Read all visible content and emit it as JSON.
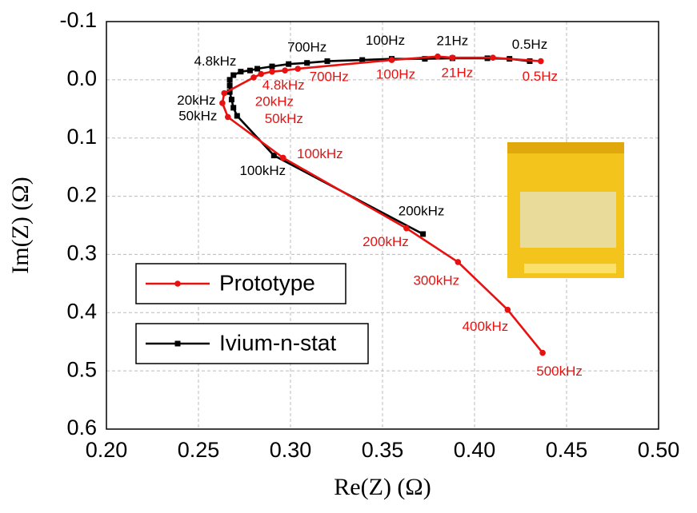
{
  "chart_data": {
    "type": "line",
    "x_label": "Re(Z) (Ω)",
    "y_label": "Im(Z) (Ω)",
    "xlim": [
      0.2,
      0.5
    ],
    "xticks": [
      {
        "value": 0.2,
        "label": "0.20"
      },
      0.25,
      {
        "value": 0.3,
        "label": "0.30"
      },
      0.35,
      {
        "value": 0.4,
        "label": "0.40"
      },
      0.45,
      {
        "value": 0.5,
        "label": "0.50"
      }
    ],
    "ylim": [
      -0.1,
      0.6
    ],
    "y_inverted": true,
    "yticks": [
      -0.1,
      {
        "value": 0,
        "label": "0.0"
      },
      0.1,
      0.2,
      0.3,
      0.4,
      0.5,
      0.6
    ],
    "grid": true,
    "series": [
      {
        "name": "Prototype",
        "color": "#e8110f",
        "marker": "circle",
        "x": [
          0.436,
          0.41,
          0.388,
          0.38,
          0.355,
          0.304,
          0.297,
          0.29,
          0.284,
          0.28,
          0.264,
          0.263,
          0.266,
          0.296,
          0.363,
          0.391,
          0.418,
          0.437
        ],
        "values": [
          -0.032,
          -0.038,
          -0.038,
          -0.04,
          -0.034,
          -0.019,
          -0.016,
          -0.014,
          -0.01,
          -0.004,
          0.023,
          0.04,
          0.064,
          0.134,
          0.255,
          0.313,
          0.395,
          0.469
        ],
        "point_labels": [
          "0.5Hz",
          null,
          "21Hz",
          null,
          "100Hz",
          "700Hz",
          null,
          null,
          "4.8kHz",
          null,
          null,
          "20kHz",
          "50kHz",
          "100kHz",
          "200kHz",
          "300kHz",
          "400kHz",
          "500kHz"
        ]
      },
      {
        "name": "Ivium-n-stat",
        "color": "#000000",
        "marker": "square",
        "x": [
          0.43,
          0.419,
          0.407,
          0.388,
          0.373,
          0.355,
          0.339,
          0.32,
          0.309,
          0.299,
          0.29,
          0.282,
          0.278,
          0.273,
          0.269,
          0.267,
          0.267,
          0.267,
          0.268,
          0.269,
          0.271,
          0.291,
          0.372
        ],
        "values": [
          -0.032,
          -0.036,
          -0.037,
          -0.037,
          -0.036,
          -0.036,
          -0.034,
          -0.032,
          -0.029,
          -0.027,
          -0.023,
          -0.019,
          -0.016,
          -0.014,
          -0.008,
          0,
          0.01,
          0.021,
          0.034,
          0.048,
          0.062,
          0.13,
          0.265
        ],
        "point_labels": [
          "0.5Hz",
          null,
          null,
          "21Hz",
          null,
          "100Hz",
          null,
          null,
          null,
          "700Hz",
          null,
          null,
          null,
          "4.8kHz",
          null,
          null,
          null,
          null,
          "20kHz",
          null,
          "50kHz",
          "100kHz",
          "200kHz"
        ]
      }
    ]
  }
}
